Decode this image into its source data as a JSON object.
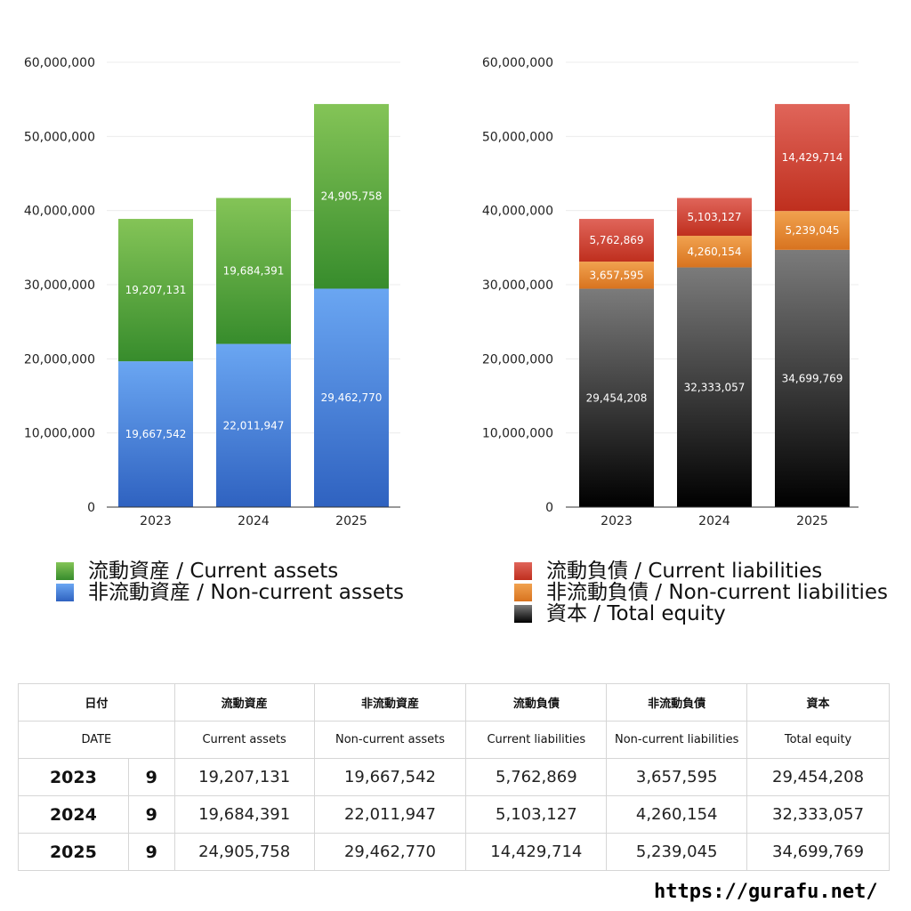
{
  "chart_data": [
    {
      "type": "bar",
      "stacked": true,
      "categories": [
        "2023",
        "2024",
        "2025"
      ],
      "yticks": [
        "60,000,000",
        "50,000,000",
        "40,000,000",
        "30,000,000",
        "20,000,000",
        "10,000,000",
        "0"
      ],
      "ylim": [
        0,
        60000000
      ],
      "grid": true,
      "series": [
        {
          "name": "非流動資産 / Non-current assets",
          "values": [
            19667542,
            22011947,
            29462770
          ],
          "labels": [
            "19,667,542",
            "22,011,947",
            "29,462,770"
          ],
          "color": "#4a86e8"
        },
        {
          "name": "流動資産 / Current assets",
          "values": [
            19207131,
            19684391,
            24905758
          ],
          "labels": [
            "19,207,131",
            "19,684,391",
            "24,905,758"
          ],
          "color": "#4caf50"
        }
      ]
    },
    {
      "type": "bar",
      "stacked": true,
      "categories": [
        "2023",
        "2024",
        "2025"
      ],
      "yticks": [
        "60,000,000",
        "50,000,000",
        "40,000,000",
        "30,000,000",
        "20,000,000",
        "10,000,000",
        "0"
      ],
      "ylim": [
        0,
        60000000
      ],
      "grid": true,
      "series": [
        {
          "name": "資本 / Total equity",
          "values": [
            29454208,
            32333057,
            34699769
          ],
          "labels": [
            "29,454,208",
            "32,333,057",
            "34,699,769"
          ],
          "color": "#444444"
        },
        {
          "name": "非流動負債 / Non-current liabilities",
          "values": [
            3657595,
            4260154,
            5239045
          ],
          "labels": [
            "3,657,595",
            "4,260,154",
            "5,239,045"
          ],
          "color": "#e8872e"
        },
        {
          "name": "流動負債 / Current liabilities",
          "values": [
            5762869,
            5103127,
            14429714
          ],
          "labels": [
            "5,762,869",
            "5,103,127",
            "14,429,714"
          ],
          "color": "#d9483b"
        }
      ]
    }
  ],
  "legend_left": [
    {
      "label": "流動資産 / Current assets",
      "color": "#4caf50"
    },
    {
      "label": "非流動資産 / Non-current assets",
      "color": "#4a86e8"
    }
  ],
  "legend_right": [
    {
      "label": "流動負債 / Current liabilities",
      "color": "#d9483b"
    },
    {
      "label": "非流動負債 / Non-current liabilities",
      "color": "#e8872e"
    },
    {
      "label": "資本 / Total equity",
      "color": "#333333"
    }
  ],
  "table": {
    "headers_jp": [
      "日付",
      "流動資産",
      "非流動資産",
      "流動負債",
      "非流動負債",
      "資本"
    ],
    "headers_en": [
      "DATE",
      "Current assets",
      "Non-current assets",
      "Current liabilities",
      "Non-current liabilities",
      "Total equity"
    ],
    "rows": [
      {
        "year": "2023",
        "month": "9",
        "values": [
          "19,207,131",
          "19,667,542",
          "5,762,869",
          "3,657,595",
          "29,454,208"
        ]
      },
      {
        "year": "2024",
        "month": "9",
        "values": [
          "19,684,391",
          "22,011,947",
          "5,103,127",
          "4,260,154",
          "32,333,057"
        ]
      },
      {
        "year": "2025",
        "month": "9",
        "values": [
          "24,905,758",
          "29,462,770",
          "14,429,714",
          "5,239,045",
          "34,699,769"
        ]
      }
    ]
  },
  "source": "https://gurafu.net/"
}
